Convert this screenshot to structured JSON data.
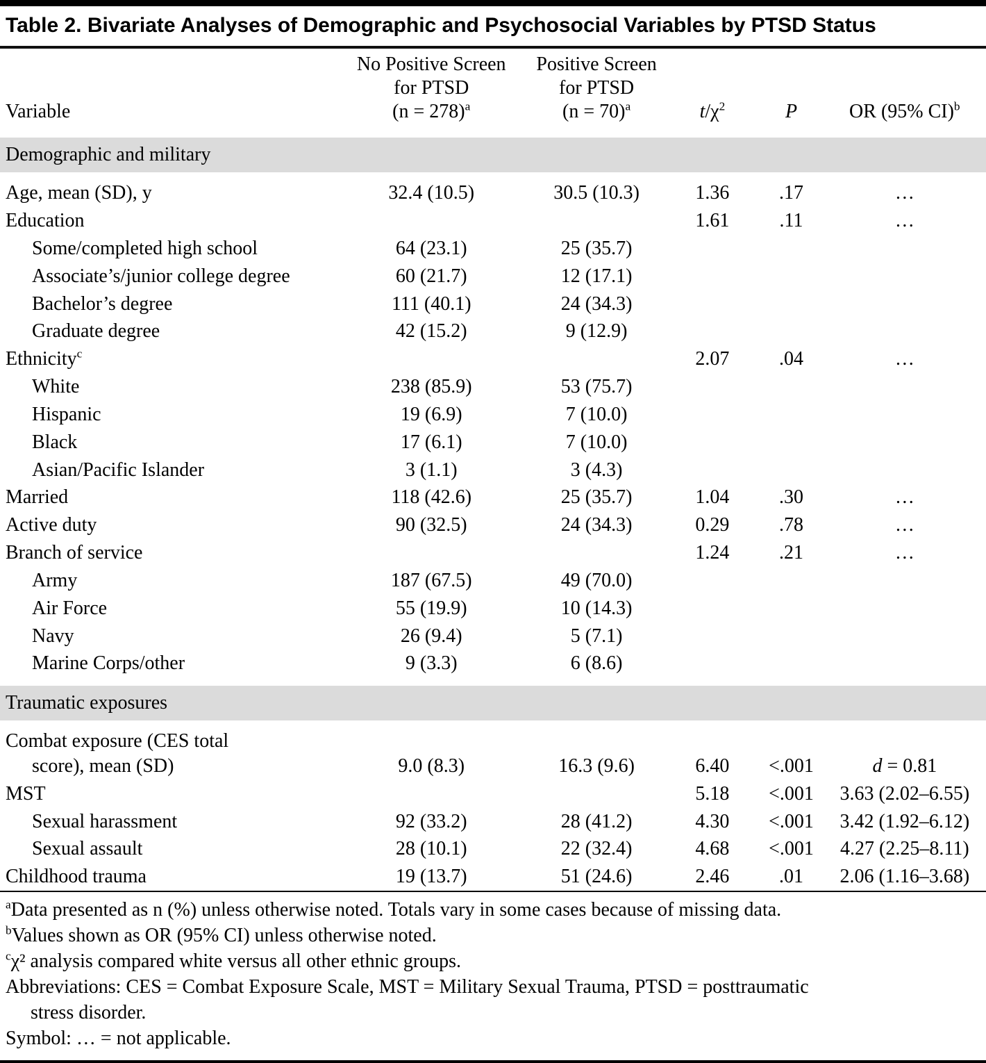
{
  "title": "Table 2. Bivariate Analyses of Demographic and Psychosocial Variables by PTSD Status",
  "colors": {
    "section_bar": "#dbdbdb",
    "rule": "#000000"
  },
  "header": {
    "variable": "Variable",
    "no_screen": {
      "line1": "No Positive Screen",
      "line2": "for PTSD",
      "line3": "(n = 278)",
      "sup": "a"
    },
    "screen": {
      "line1": "Positive Screen",
      "line2": "for PTSD",
      "line3": "(n = 70)",
      "sup": "a"
    },
    "stat": {
      "t": "t",
      "rest": "/χ",
      "sup": "2"
    },
    "p": "P",
    "or": {
      "text": "OR (95% CI)",
      "sup": "b"
    }
  },
  "sections": [
    {
      "label": "Demographic and military",
      "rows": [
        {
          "label": "Age, mean (SD), y",
          "indent": false,
          "col1": "32.4 (10.5)",
          "col2": "30.5 (10.3)",
          "stat": "1.36",
          "p": ".17",
          "or": "…"
        },
        {
          "label": "Education",
          "indent": false,
          "col1": "",
          "col2": "",
          "stat": "1.61",
          "p": ".11",
          "or": "…"
        },
        {
          "label": "Some/completed high school",
          "indent": true,
          "col1": "64 (23.1)",
          "col2": "25 (35.7)",
          "stat": "",
          "p": "",
          "or": ""
        },
        {
          "label": "Associate’s/junior college degree",
          "indent": true,
          "col1": "60 (21.7)",
          "col2": "12 (17.1)",
          "stat": "",
          "p": "",
          "or": ""
        },
        {
          "label": "Bachelor’s degree",
          "indent": true,
          "col1": "111 (40.1)",
          "col2": "24 (34.3)",
          "stat": "",
          "p": "",
          "or": ""
        },
        {
          "label": "Graduate degree",
          "indent": true,
          "col1": "42 (15.2)",
          "col2": "9 (12.9)",
          "stat": "",
          "p": "",
          "or": ""
        },
        {
          "label": "Ethnicity",
          "label_sup": "c",
          "indent": false,
          "col1": "",
          "col2": "",
          "stat": "2.07",
          "p": ".04",
          "or": "…"
        },
        {
          "label": "White",
          "indent": true,
          "col1": "238 (85.9)",
          "col2": "53 (75.7)",
          "stat": "",
          "p": "",
          "or": ""
        },
        {
          "label": "Hispanic",
          "indent": true,
          "col1": "19 (6.9)",
          "col2": "7 (10.0)",
          "stat": "",
          "p": "",
          "or": ""
        },
        {
          "label": "Black",
          "indent": true,
          "col1": "17 (6.1)",
          "col2": "7 (10.0)",
          "stat": "",
          "p": "",
          "or": ""
        },
        {
          "label": "Asian/Pacific Islander",
          "indent": true,
          "col1": "3 (1.1)",
          "col2": "3 (4.3)",
          "stat": "",
          "p": "",
          "or": ""
        },
        {
          "label": "Married",
          "indent": false,
          "col1": "118 (42.6)",
          "col2": "25 (35.7)",
          "stat": "1.04",
          "p": ".30",
          "or": "…"
        },
        {
          "label": "Active duty",
          "indent": false,
          "col1": "90 (32.5)",
          "col2": "24 (34.3)",
          "stat": "0.29",
          "p": ".78",
          "or": "…"
        },
        {
          "label": "Branch of service",
          "indent": false,
          "col1": "",
          "col2": "",
          "stat": "1.24",
          "p": ".21",
          "or": "…"
        },
        {
          "label": "Army",
          "indent": true,
          "col1": "187 (67.5)",
          "col2": "49 (70.0)",
          "stat": "",
          "p": "",
          "or": ""
        },
        {
          "label": "Air Force",
          "indent": true,
          "col1": "55 (19.9)",
          "col2": "10 (14.3)",
          "stat": "",
          "p": "",
          "or": ""
        },
        {
          "label": "Navy",
          "indent": true,
          "col1": "26 (9.4)",
          "col2": "5 (7.1)",
          "stat": "",
          "p": "",
          "or": ""
        },
        {
          "label": "Marine Corps/other",
          "indent": true,
          "col1": "9 (3.3)",
          "col2": "6 (8.6)",
          "stat": "",
          "p": "",
          "or": ""
        }
      ]
    },
    {
      "label": "Traumatic exposures",
      "rows": [
        {
          "label": "Combat exposure (CES total\nscore), mean (SD)",
          "indent": false,
          "hang": true,
          "col1": "9.0 (8.3)",
          "col2": "16.3 (9.6)",
          "stat": "6.40",
          "p": "<.001",
          "or": " = 0.81",
          "or_italic_prefix": "d"
        },
        {
          "label": "MST",
          "indent": false,
          "col1": "",
          "col2": "",
          "stat": "5.18",
          "p": "<.001",
          "or": "3.63 (2.02–6.55)"
        },
        {
          "label": "Sexual harassment",
          "indent": true,
          "col1": "92 (33.2)",
          "col2": "28 (41.2)",
          "stat": "4.30",
          "p": "<.001",
          "or": "3.42 (1.92–6.12)"
        },
        {
          "label": "Sexual assault",
          "indent": true,
          "col1": "28 (10.1)",
          "col2": "22 (32.4)",
          "stat": "4.68",
          "p": "<.001",
          "or": "4.27 (2.25–8.11)"
        },
        {
          "label": "Childhood trauma",
          "indent": false,
          "col1": "19 (13.7)",
          "col2": "51 (24.6)",
          "stat": "2.46",
          "p": ".01",
          "or": "2.06 (1.16–3.68)"
        }
      ]
    }
  ],
  "footnotes": [
    {
      "sup": "a",
      "text": "Data presented as n (%) unless otherwise noted. Totals vary in some cases because of missing data."
    },
    {
      "sup": "b",
      "text": "Values shown as OR (95% CI) unless otherwise noted."
    },
    {
      "sup": "c",
      "text": "χ² analysis compared white versus all other ethnic groups."
    },
    {
      "sup": "",
      "text": "Abbreviations: CES = Combat Exposure Scale, MST = Military Sexual Trauma, PTSD = posttraumatic\nstress disorder."
    },
    {
      "sup": "",
      "text": "Symbol: … = not applicable."
    }
  ]
}
